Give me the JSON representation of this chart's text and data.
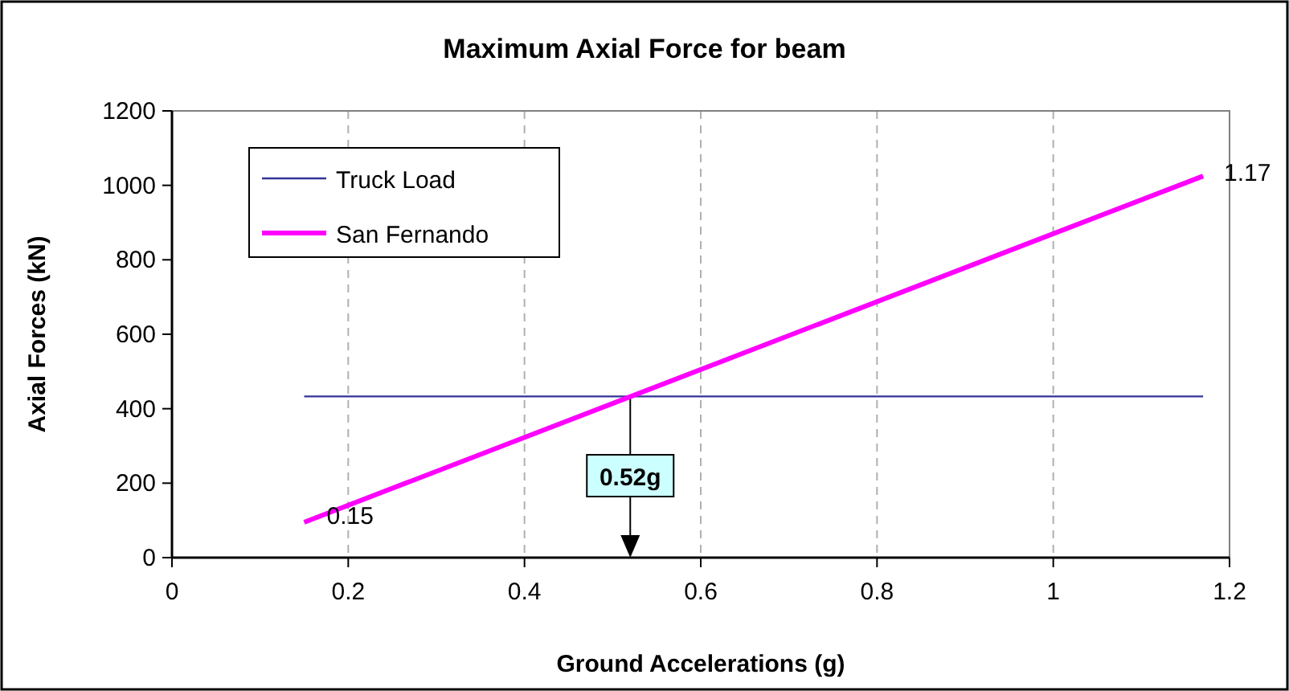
{
  "chart_data": {
    "type": "line",
    "title": "Maximum Axial Force for beam",
    "xlabel": "Ground Accelerations (g)",
    "ylabel": "Axial Forces (kN)",
    "xlim": [
      0,
      1.2
    ],
    "xticks": [
      0,
      0.2,
      0.4,
      0.6,
      0.8,
      1,
      1.2
    ],
    "ylim": [
      0,
      1200
    ],
    "yticks": [
      0,
      200,
      400,
      600,
      800,
      1000,
      1200
    ],
    "x": [
      0.15,
      1.17
    ],
    "series": [
      {
        "name": "Truck Load",
        "color": "#333399",
        "values": [
          433,
          433
        ]
      },
      {
        "name": "San Fernando",
        "color": "#ff00ff",
        "values": [
          95,
          1025
        ]
      }
    ],
    "annotations": [
      {
        "text": "0.15",
        "x": 0.15,
        "y": 95
      },
      {
        "text": "1.17",
        "x": 1.17,
        "y": 1025
      },
      {
        "text": "0.52g",
        "x": 0.52,
        "y": 433
      }
    ],
    "grid": "x",
    "legend": "top left",
    "marker": "none",
    "line_style": "solid"
  }
}
